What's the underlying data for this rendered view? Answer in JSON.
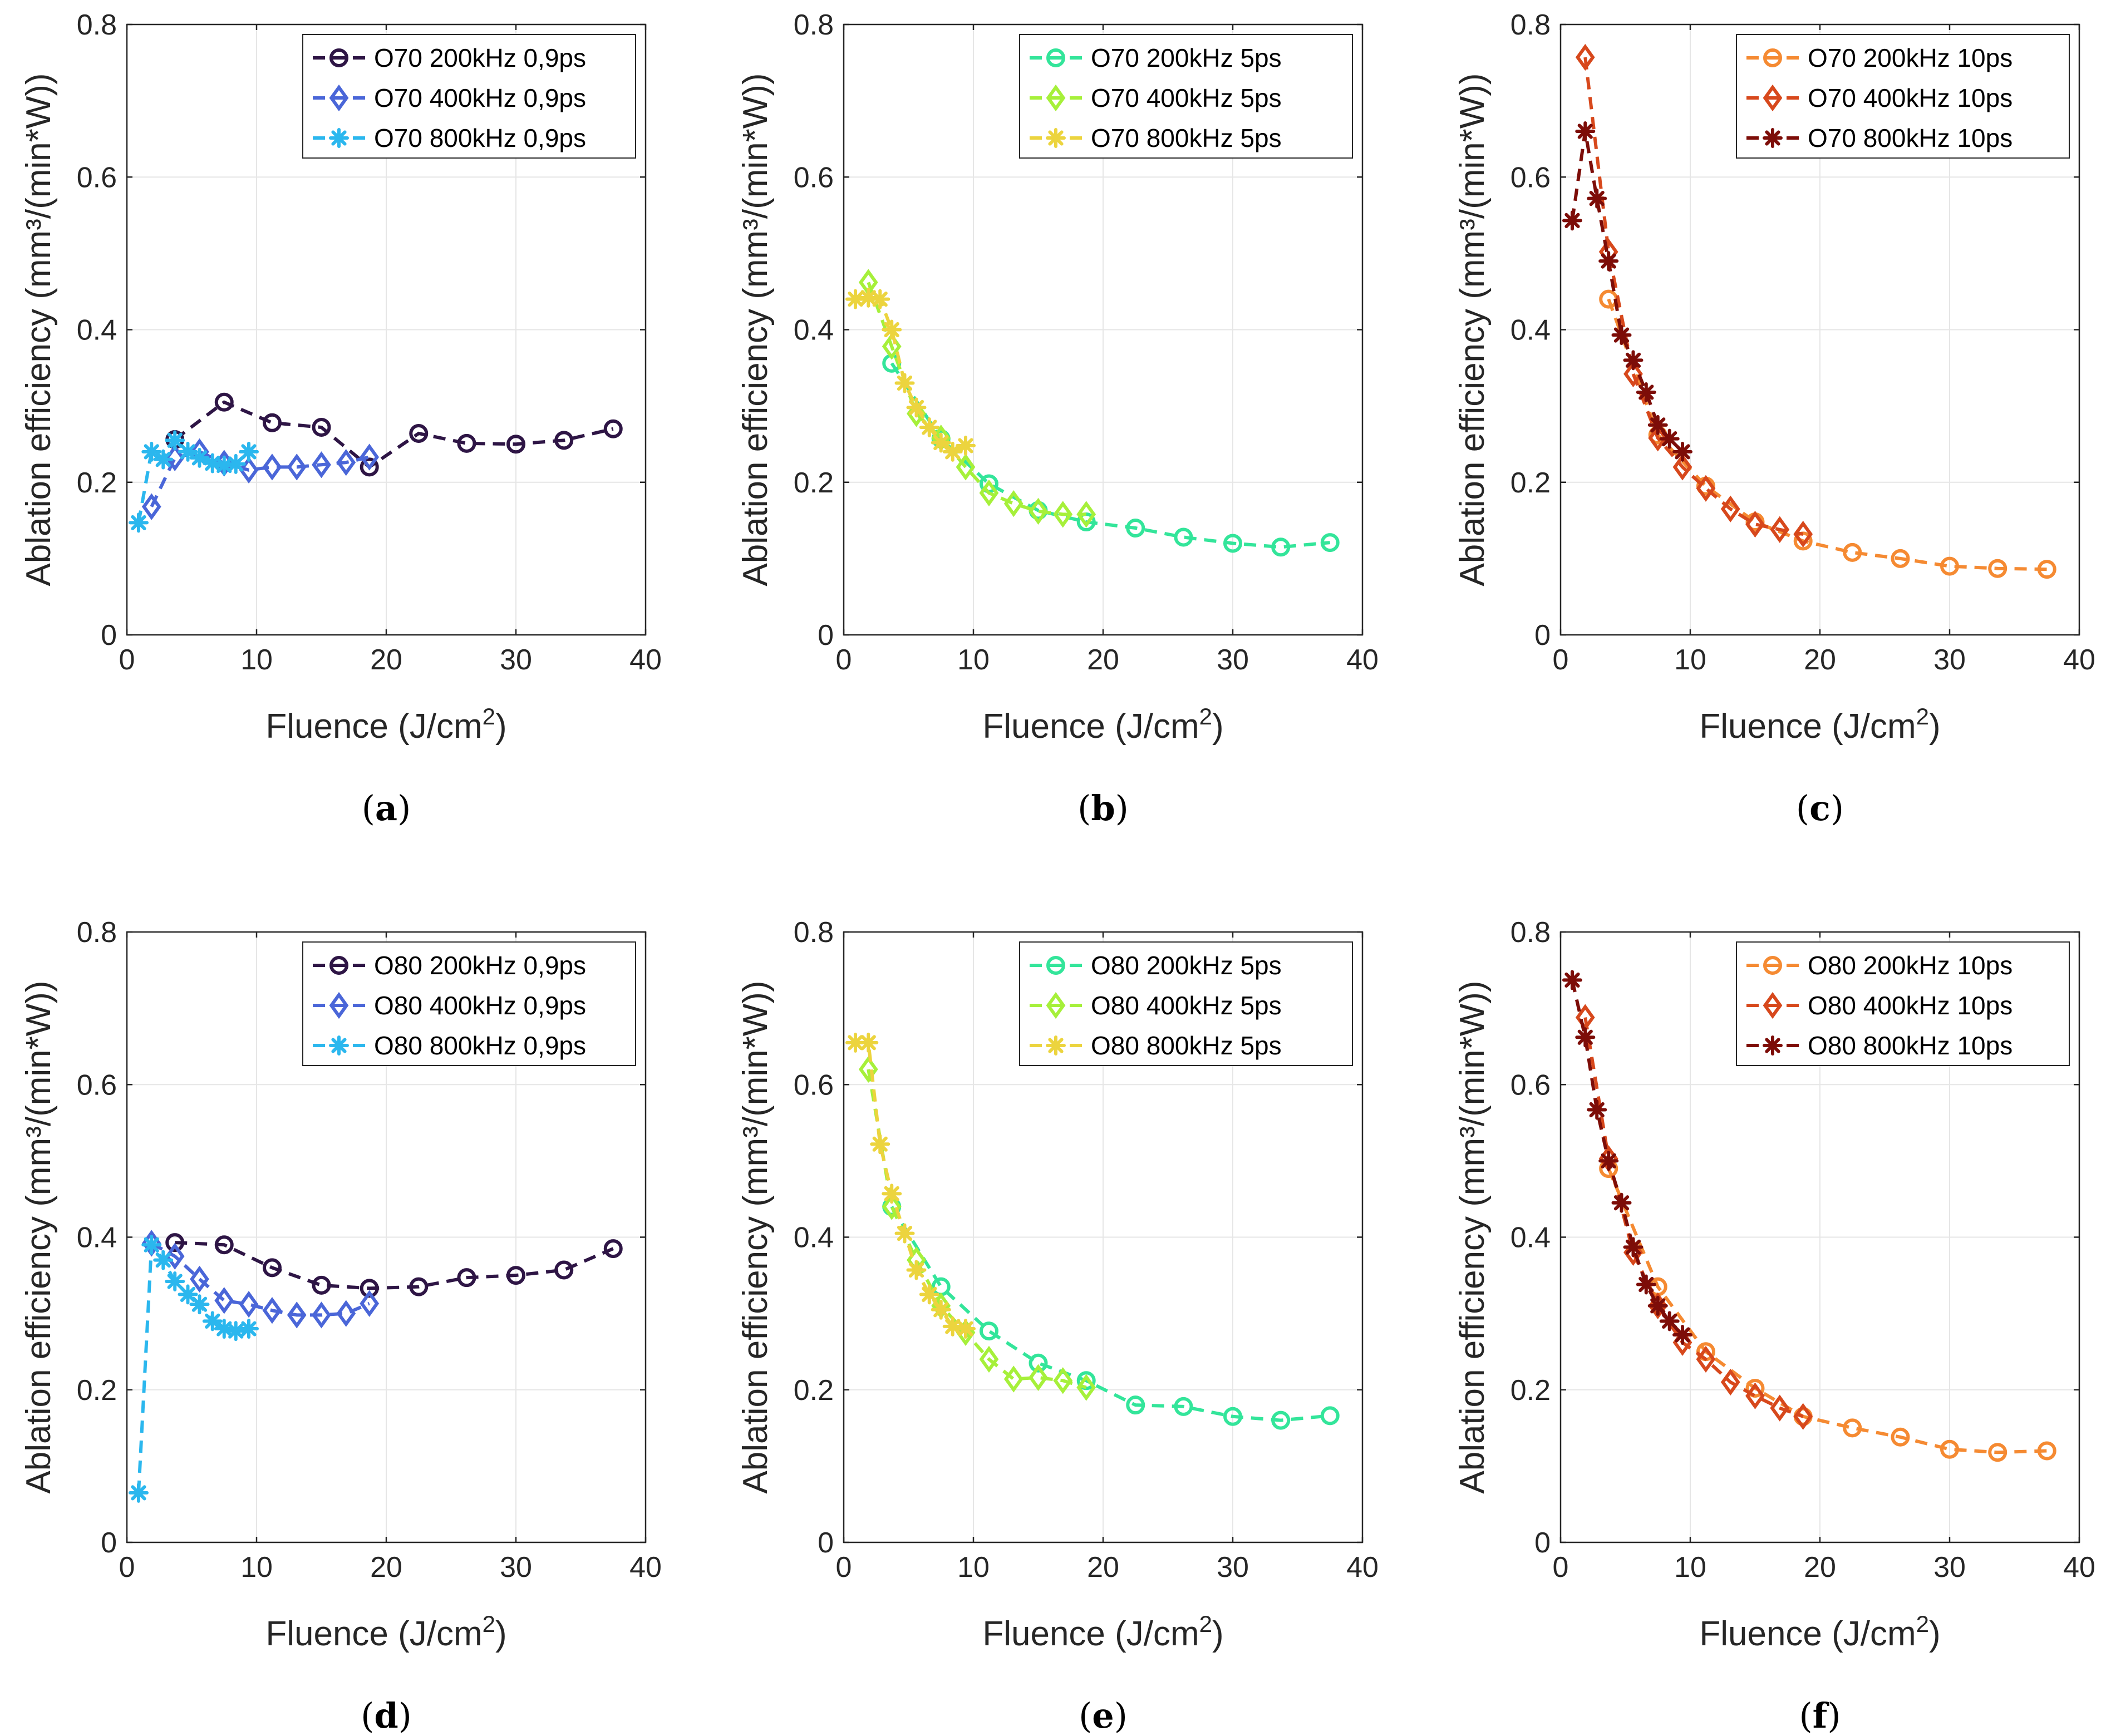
{
  "colors": {
    "a_200": "#2e1545",
    "a_400": "#4a66d8",
    "a_800": "#2bb7ee",
    "b_200": "#33e59a",
    "b_400": "#a6f03a",
    "b_800": "#ecd43e",
    "c_200": "#f58a32",
    "c_400": "#d7481c",
    "c_800": "#7d0d08"
  },
  "chart_data": [
    {
      "type": "line",
      "caption": "a",
      "xlabel": "Fluence (J/cm",
      "xlabel_sup": "2",
      "xlabel_end": ")",
      "ylabel": "Ablation efficiency (mm³/(min*W))",
      "xlim": [
        0,
        40
      ],
      "ylim": [
        0,
        0.8
      ],
      "xticks": [
        "0",
        "10",
        "20",
        "30",
        "40"
      ],
      "yticks": [
        "0",
        "0.2",
        "0.4",
        "0.6",
        "0.8"
      ],
      "legend_position": "top-right",
      "series": [
        {
          "name": "O70 200kHz 0,9ps",
          "marker": "circle",
          "color": "#2e1545",
          "x": [
            3.7,
            7.5,
            11.2,
            15,
            18.7,
            22.5,
            26.2,
            30,
            33.7,
            37.5
          ],
          "y": [
            0.256,
            0.305,
            0.278,
            0.272,
            0.22,
            0.264,
            0.251,
            0.25,
            0.255,
            0.27
          ]
        },
        {
          "name": "O70 400kHz 0,9ps",
          "marker": "diamond",
          "color": "#4a66d8",
          "x": [
            1.9,
            3.7,
            5.6,
            7.5,
            9.4,
            11.2,
            13.1,
            15,
            16.9,
            18.7
          ],
          "y": [
            0.168,
            0.232,
            0.24,
            0.225,
            0.216,
            0.22,
            0.22,
            0.223,
            0.226,
            0.233
          ]
        },
        {
          "name": "O70 800kHz 0,9ps",
          "marker": "star",
          "color": "#2bb7ee",
          "x": [
            0.9,
            1.9,
            2.8,
            3.7,
            4.7,
            5.6,
            6.6,
            7.5,
            8.4,
            9.4
          ],
          "y": [
            0.147,
            0.24,
            0.23,
            0.255,
            0.24,
            0.232,
            0.225,
            0.222,
            0.224,
            0.24
          ]
        }
      ]
    },
    {
      "type": "line",
      "caption": "b",
      "xlabel": "Fluence (J/cm",
      "xlabel_sup": "2",
      "xlabel_end": ")",
      "ylabel": "Ablation efficiency (mm³/(min*W))",
      "xlim": [
        0,
        40
      ],
      "ylim": [
        0,
        0.8
      ],
      "xticks": [
        "0",
        "10",
        "20",
        "30",
        "40"
      ],
      "yticks": [
        "0",
        "0.2",
        "0.4",
        "0.6",
        "0.8"
      ],
      "legend_position": "top-right",
      "series": [
        {
          "name": "O70 200kHz 5ps",
          "marker": "circle",
          "color": "#33e59a",
          "x": [
            3.7,
            7.5,
            11.2,
            15,
            18.7,
            22.5,
            26.2,
            30,
            33.7,
            37.5
          ],
          "y": [
            0.356,
            0.257,
            0.198,
            0.163,
            0.148,
            0.14,
            0.128,
            0.12,
            0.115,
            0.121
          ]
        },
        {
          "name": "O70 400kHz 5ps",
          "marker": "diamond",
          "color": "#a6f03a",
          "x": [
            1.9,
            3.7,
            5.6,
            7.5,
            9.4,
            11.2,
            13.1,
            15,
            16.9,
            18.7
          ],
          "y": [
            0.462,
            0.378,
            0.29,
            0.258,
            0.22,
            0.186,
            0.172,
            0.162,
            0.158,
            0.158
          ]
        },
        {
          "name": "O70 800kHz 5ps",
          "marker": "star",
          "color": "#ecd43e",
          "x": [
            0.9,
            1.9,
            2.8,
            3.7,
            4.7,
            5.6,
            6.6,
            7.5,
            8.4,
            9.4
          ],
          "y": [
            0.44,
            0.442,
            0.44,
            0.4,
            0.33,
            0.298,
            0.272,
            0.252,
            0.24,
            0.248
          ]
        }
      ]
    },
    {
      "type": "line",
      "caption": "c",
      "xlabel": "Fluence (J/cm",
      "xlabel_sup": "2",
      "xlabel_end": ")",
      "ylabel": "Ablation efficiency (mm³/(min*W))",
      "xlim": [
        0,
        40
      ],
      "ylim": [
        0,
        0.8
      ],
      "xticks": [
        "0",
        "10",
        "20",
        "30",
        "40"
      ],
      "yticks": [
        "0",
        "0.2",
        "0.4",
        "0.6",
        "0.8"
      ],
      "legend_position": "top-right",
      "series": [
        {
          "name": "O70 200kHz 10ps",
          "marker": "circle",
          "color": "#f58a32",
          "x": [
            3.7,
            7.5,
            11.2,
            15,
            18.7,
            22.5,
            26.2,
            30,
            33.7,
            37.5
          ],
          "y": [
            0.44,
            0.262,
            0.195,
            0.148,
            0.123,
            0.108,
            0.1,
            0.09,
            0.087,
            0.086
          ]
        },
        {
          "name": "O70 400kHz 10ps",
          "marker": "diamond",
          "color": "#d7481c",
          "x": [
            1.9,
            3.7,
            5.6,
            7.5,
            9.4,
            11.2,
            13.1,
            15,
            16.9,
            18.7
          ],
          "y": [
            0.757,
            0.502,
            0.342,
            0.258,
            0.22,
            0.192,
            0.165,
            0.145,
            0.138,
            0.132
          ]
        },
        {
          "name": "O70 800kHz 10ps",
          "marker": "star",
          "color": "#7d0d08",
          "x": [
            0.9,
            1.9,
            2.8,
            3.7,
            4.7,
            5.6,
            6.6,
            7.5,
            8.4,
            9.4
          ],
          "y": [
            0.543,
            0.66,
            0.572,
            0.49,
            0.393,
            0.36,
            0.318,
            0.275,
            0.257,
            0.24
          ]
        }
      ]
    },
    {
      "type": "line",
      "caption": "d",
      "xlabel": "Fluence (J/cm",
      "xlabel_sup": "2",
      "xlabel_end": ")",
      "ylabel": "Ablation efficiency (mm³/(min*W))",
      "xlim": [
        0,
        40
      ],
      "ylim": [
        0,
        0.8
      ],
      "xticks": [
        "0",
        "10",
        "20",
        "30",
        "40"
      ],
      "yticks": [
        "0",
        "0.2",
        "0.4",
        "0.6",
        "0.8"
      ],
      "legend_position": "top-right",
      "series": [
        {
          "name": "O80 200kHz 0,9ps",
          "marker": "circle",
          "color": "#2e1545",
          "x": [
            3.7,
            7.5,
            11.2,
            15,
            18.7,
            22.5,
            26.2,
            30,
            33.7,
            37.5
          ],
          "y": [
            0.393,
            0.39,
            0.36,
            0.337,
            0.333,
            0.335,
            0.347,
            0.35,
            0.357,
            0.385
          ]
        },
        {
          "name": "O80 400kHz 0,9ps",
          "marker": "diamond",
          "color": "#4a66d8",
          "x": [
            1.9,
            3.7,
            5.6,
            7.5,
            9.4,
            11.2,
            13.1,
            15,
            16.9,
            18.7
          ],
          "y": [
            0.392,
            0.375,
            0.345,
            0.317,
            0.312,
            0.304,
            0.298,
            0.298,
            0.3,
            0.313
          ]
        },
        {
          "name": "O80 800kHz 0,9ps",
          "marker": "star",
          "color": "#2bb7ee",
          "x": [
            0.9,
            1.9,
            2.8,
            3.7,
            4.7,
            5.6,
            6.6,
            7.5,
            8.4,
            9.4
          ],
          "y": [
            0.065,
            0.39,
            0.37,
            0.342,
            0.325,
            0.312,
            0.29,
            0.28,
            0.277,
            0.28
          ]
        }
      ]
    },
    {
      "type": "line",
      "caption": "e",
      "xlabel": "Fluence (J/cm",
      "xlabel_sup": "2",
      "xlabel_end": ")",
      "ylabel": "Ablation efficiency (mm³/(min*W))",
      "xlim": [
        0,
        40
      ],
      "ylim": [
        0,
        0.8
      ],
      "xticks": [
        "0",
        "10",
        "20",
        "30",
        "40"
      ],
      "yticks": [
        "0",
        "0.2",
        "0.4",
        "0.6",
        "0.8"
      ],
      "legend_position": "top-right",
      "series": [
        {
          "name": "O80 200kHz 5ps",
          "marker": "circle",
          "color": "#33e59a",
          "x": [
            3.7,
            7.5,
            11.2,
            15,
            18.7,
            22.5,
            26.2,
            30,
            33.7,
            37.5
          ],
          "y": [
            0.44,
            0.335,
            0.277,
            0.235,
            0.212,
            0.18,
            0.178,
            0.165,
            0.16,
            0.166
          ]
        },
        {
          "name": "O80 400kHz 5ps",
          "marker": "diamond",
          "color": "#a6f03a",
          "x": [
            1.9,
            3.7,
            5.6,
            7.5,
            9.4,
            11.2,
            13.1,
            15,
            16.9,
            18.7
          ],
          "y": [
            0.62,
            0.44,
            0.37,
            0.31,
            0.275,
            0.24,
            0.214,
            0.216,
            0.212,
            0.203
          ]
        },
        {
          "name": "O80 800kHz 5ps",
          "marker": "star",
          "color": "#ecd43e",
          "x": [
            0.9,
            1.9,
            2.8,
            3.7,
            4.7,
            5.6,
            6.6,
            7.5,
            8.4,
            9.4
          ],
          "y": [
            0.655,
            0.655,
            0.522,
            0.457,
            0.405,
            0.357,
            0.325,
            0.305,
            0.283,
            0.28
          ]
        }
      ]
    },
    {
      "type": "line",
      "caption": "f",
      "xlabel": "Fluence (J/cm",
      "xlabel_sup": "2",
      "xlabel_end": ")",
      "ylabel": "Ablation efficiency (mm³/(min*W))",
      "xlim": [
        0,
        40
      ],
      "ylim": [
        0,
        0.8
      ],
      "xticks": [
        "0",
        "10",
        "20",
        "30",
        "40"
      ],
      "yticks": [
        "0",
        "0.2",
        "0.4",
        "0.6",
        "0.8"
      ],
      "legend_position": "top-right",
      "series": [
        {
          "name": "O80 200kHz 10ps",
          "marker": "circle",
          "color": "#f58a32",
          "x": [
            3.7,
            7.5,
            11.2,
            15,
            18.7,
            22.5,
            26.2,
            30,
            33.7,
            37.5
          ],
          "y": [
            0.49,
            0.335,
            0.25,
            0.202,
            0.165,
            0.15,
            0.138,
            0.122,
            0.118,
            0.12
          ]
        },
        {
          "name": "O80 400kHz 10ps",
          "marker": "diamond",
          "color": "#d7481c",
          "x": [
            1.9,
            3.7,
            5.6,
            7.5,
            9.4,
            11.2,
            13.1,
            15,
            16.9,
            18.7
          ],
          "y": [
            0.688,
            0.503,
            0.38,
            0.31,
            0.262,
            0.24,
            0.21,
            0.192,
            0.176,
            0.165
          ]
        },
        {
          "name": "O80 800kHz 10ps",
          "marker": "star",
          "color": "#7d0d08",
          "x": [
            0.9,
            1.9,
            2.8,
            3.7,
            4.7,
            5.6,
            6.6,
            7.5,
            8.4,
            9.4
          ],
          "y": [
            0.737,
            0.662,
            0.567,
            0.5,
            0.445,
            0.387,
            0.338,
            0.31,
            0.29,
            0.272
          ]
        }
      ]
    }
  ]
}
